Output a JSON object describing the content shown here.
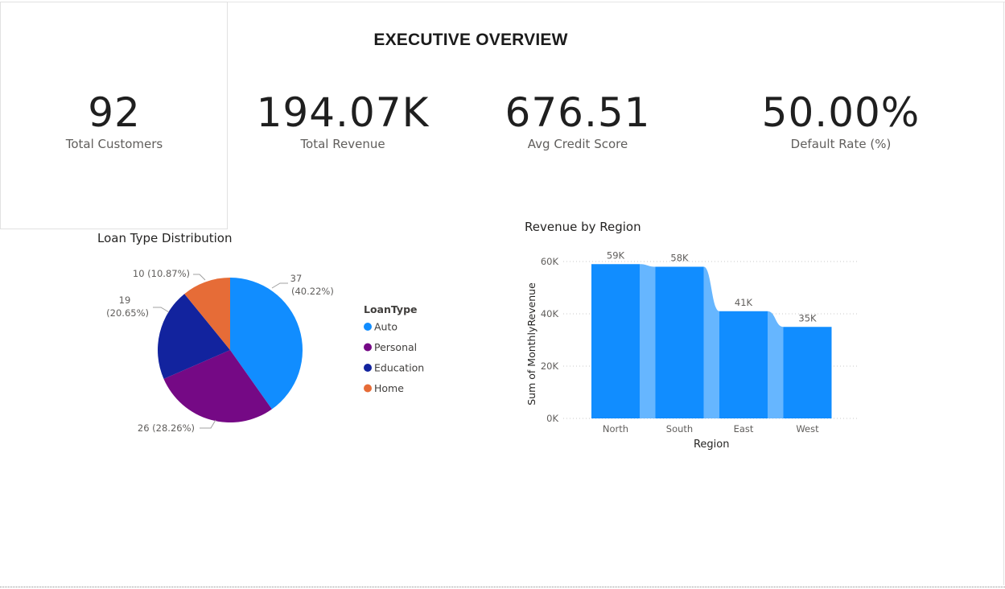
{
  "report": {
    "title": "EXECUTIVE OVERVIEW"
  },
  "kpis": [
    {
      "value": "92",
      "label": "Total Customers"
    },
    {
      "value": "194.07K",
      "label": "Total Revenue"
    },
    {
      "value": "676.51",
      "label": "Avg Credit Score"
    },
    {
      "value": "50.00%",
      "label": "Default Rate (%)"
    }
  ],
  "colors": {
    "auto": "#118DFF",
    "personal": "#750985",
    "education": "#12239E",
    "home": "#E66C37",
    "bar": "#118DFF",
    "ribbon": "#66B6FF"
  },
  "chart_data": [
    {
      "type": "pie",
      "title": "Loan Type Distribution",
      "legend_title": "LoanType",
      "legend_position": "right",
      "categories": [
        "Auto",
        "Personal",
        "Education",
        "Home"
      ],
      "values": [
        37,
        26,
        19,
        10
      ],
      "data_labels": [
        {
          "count": "37",
          "pct": "(40.22%)"
        },
        {
          "count": "26",
          "pct": "(28.26%)"
        },
        {
          "count": "19",
          "pct": "(20.65%)"
        },
        {
          "count": "10",
          "pct": "(10.87%)"
        }
      ]
    },
    {
      "type": "bar",
      "subtype": "ribbon",
      "title": "Revenue by Region",
      "categories": [
        "North",
        "South",
        "East",
        "West"
      ],
      "values": [
        59000,
        58000,
        41000,
        35000
      ],
      "value_labels": [
        "59K",
        "58K",
        "41K",
        "35K"
      ],
      "xlabel": "Region",
      "ylabel": "Sum of MonthlyRevenue",
      "ylim": [
        0,
        60000
      ],
      "yticks": [
        0,
        20000,
        40000,
        60000
      ],
      "ytick_labels": [
        "0K",
        "20K",
        "40K",
        "60K"
      ],
      "grid": true
    }
  ]
}
